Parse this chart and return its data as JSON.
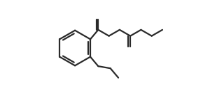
{
  "bg_color": "#ffffff",
  "line_color": "#2a2a2a",
  "line_width": 1.6,
  "fig_width": 3.2,
  "fig_height": 1.38,
  "dpi": 100,
  "xlim": [
    0.0,
    1.0
  ],
  "ylim": [
    0.05,
    0.95
  ]
}
